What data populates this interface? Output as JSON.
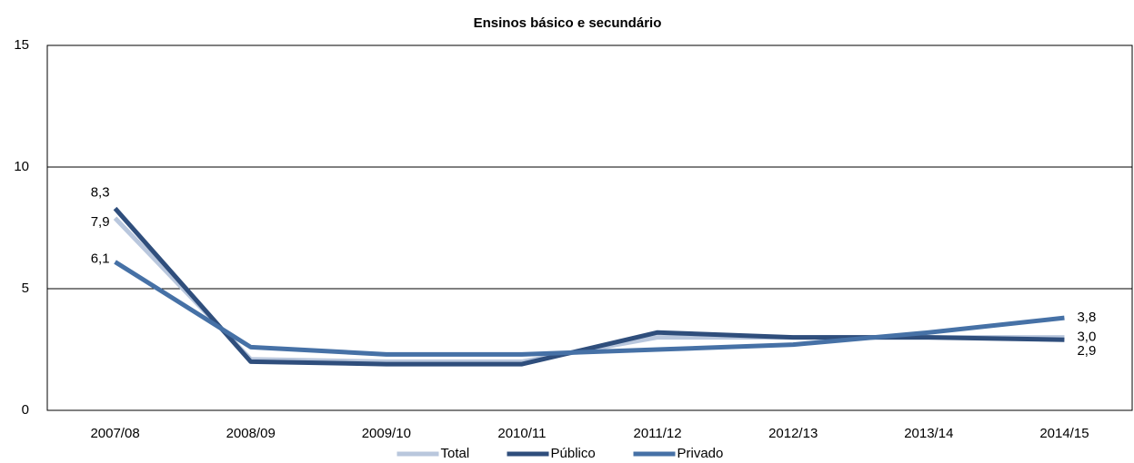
{
  "chart_data": {
    "type": "line",
    "title": "Ensinos básico e secundário",
    "categories": [
      "2007/08",
      "2008/09",
      "2009/10",
      "2010/11",
      "2011/12",
      "2012/13",
      "2013/14",
      "2014/15"
    ],
    "series": [
      {
        "name": "Total",
        "color": "#b9c7dd",
        "values": [
          7.9,
          2.1,
          2.0,
          2.0,
          3.0,
          3.0,
          3.0,
          3.0
        ],
        "value_labels": [
          "7,9",
          null,
          null,
          null,
          null,
          null,
          null,
          "3,0"
        ]
      },
      {
        "name": "Público",
        "color": "#2f4e7c",
        "values": [
          8.3,
          2.0,
          1.9,
          1.9,
          3.2,
          3.0,
          3.0,
          2.9
        ],
        "value_labels": [
          "8,3",
          null,
          null,
          null,
          null,
          null,
          null,
          "2,9"
        ]
      },
      {
        "name": "Privado",
        "color": "#4671a6",
        "values": [
          6.1,
          2.6,
          2.3,
          2.3,
          2.5,
          2.7,
          3.2,
          3.8
        ],
        "value_labels": [
          "6,1",
          null,
          null,
          null,
          null,
          null,
          null,
          "3,8"
        ]
      }
    ],
    "ylim": [
      0,
      15
    ],
    "yticks": [
      0,
      5,
      10,
      15
    ],
    "grid": true,
    "legend": "bottom"
  }
}
